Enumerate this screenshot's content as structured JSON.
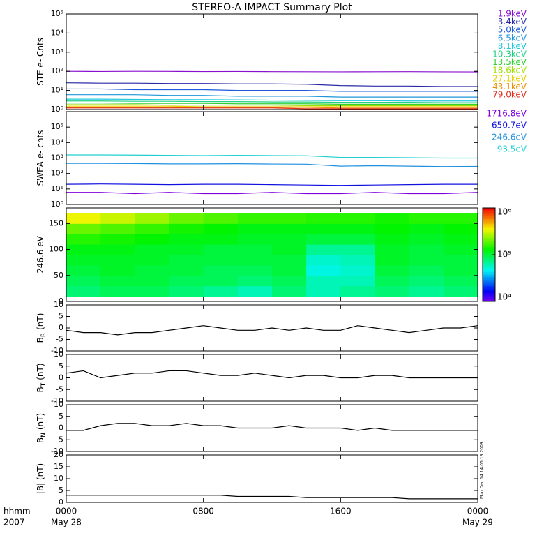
{
  "title": "STEREO-A IMPACT Summary Plot",
  "footnote": "Mon Dec 14 14:05:18 2009",
  "chart_data": [
    {
      "type": "line",
      "ylabel": "STE e- Cnts",
      "log": true,
      "x": [
        0,
        2,
        4,
        6,
        8,
        10,
        12,
        14,
        16,
        18,
        20,
        22,
        24
      ],
      "xlim": [
        0,
        24
      ],
      "ylim": [
        1,
        100000
      ],
      "yticks": [
        {
          "value": 1,
          "label": "10⁰"
        },
        {
          "value": 10,
          "label": "10¹"
        },
        {
          "value": 100,
          "label": "10²"
        },
        {
          "value": 1000,
          "label": "10³"
        },
        {
          "value": 10000,
          "label": "10⁴"
        },
        {
          "value": 100000,
          "label": "10⁵"
        }
      ],
      "series": [
        {
          "name": "1.9keV",
          "color": "#8a10d0",
          "values": [
            100,
            98,
            100,
            99,
            97,
            98,
            96,
            95,
            94,
            95,
            96,
            94,
            93
          ]
        },
        {
          "name": "3.4keV",
          "color": "#2a2aa8",
          "values": [
            25,
            24,
            24,
            23,
            23,
            22,
            22,
            21,
            18,
            17,
            17,
            16,
            16
          ]
        },
        {
          "name": "5.0keV",
          "color": "#1e5adc",
          "values": [
            12,
            12,
            11,
            11,
            11,
            10,
            10,
            10,
            9,
            9,
            9,
            9,
            9
          ]
        },
        {
          "name": "6.5keV",
          "color": "#1e96dc",
          "values": [
            6,
            6,
            6,
            5.5,
            5.5,
            5,
            5,
            5,
            4.5,
            4.5,
            4.5,
            4.5,
            4.5
          ]
        },
        {
          "name": "8.1keV",
          "color": "#20c8e0",
          "values": [
            3.5,
            3.5,
            3.4,
            3.3,
            3.3,
            3.2,
            3.1,
            3,
            2.9,
            2.9,
            2.8,
            2.8,
            2.8
          ]
        },
        {
          "name": "10.3keV",
          "color": "#20d080",
          "values": [
            2.8,
            2.8,
            2.7,
            2.7,
            2.6,
            2.6,
            2.5,
            2.5,
            2.4,
            2.4,
            2.4,
            2.3,
            2.3
          ]
        },
        {
          "name": "13.5keV",
          "color": "#30d030",
          "values": [
            2.2,
            2.2,
            2.1,
            2.1,
            2.1,
            2,
            2,
            2,
            1.9,
            1.9,
            1.9,
            1.9,
            1.9
          ]
        },
        {
          "name": "18.6keV",
          "color": "#a0e000",
          "values": [
            1.8,
            1.8,
            1.8,
            1.7,
            1.7,
            1.7,
            1.7,
            1.6,
            1.6,
            1.6,
            1.6,
            1.6,
            1.6
          ]
        },
        {
          "name": "27.1keV",
          "color": "#e8d000",
          "values": [
            1.5,
            1.5,
            1.5,
            1.5,
            1.4,
            1.4,
            1.4,
            1.4,
            1.4,
            1.4,
            1.4,
            1.4,
            1.4
          ]
        },
        {
          "name": "43.1keV",
          "color": "#f09000",
          "values": [
            1.3,
            1.3,
            1.3,
            1.3,
            1.3,
            1.3,
            1.3,
            1.3,
            1.2,
            1.2,
            1.2,
            1.2,
            1.2
          ]
        },
        {
          "name": "79.0keV",
          "color": "#e03020",
          "values": [
            1.2,
            1.2,
            1.2,
            1.2,
            1.2,
            1.2,
            1.2,
            1.1,
            1.1,
            1.1,
            1.1,
            1.1,
            1.1
          ]
        }
      ]
    },
    {
      "type": "line",
      "ylabel": "SWEA e- cnts",
      "log": true,
      "x": [
        0,
        2,
        4,
        6,
        8,
        10,
        12,
        14,
        16,
        18,
        20,
        22,
        24
      ],
      "xlim": [
        0,
        24
      ],
      "ylim": [
        1,
        1000000
      ],
      "yticks": [
        {
          "value": 1,
          "label": "10⁰"
        },
        {
          "value": 10,
          "label": "10¹"
        },
        {
          "value": 100,
          "label": "10²"
        },
        {
          "value": 1000,
          "label": "10³"
        },
        {
          "value": 10000,
          "label": "10⁴"
        },
        {
          "value": 100000,
          "label": "10⁵"
        }
      ],
      "series": [
        {
          "name": "1716.8eV",
          "color": "#8000e0",
          "values": [
            6,
            6,
            5,
            6,
            5,
            5,
            6,
            5,
            5,
            6,
            5,
            5,
            6
          ]
        },
        {
          "name": "650.7eV",
          "color": "#1010e0",
          "values": [
            20,
            21,
            20,
            19,
            20,
            20,
            19,
            18,
            17,
            18,
            19,
            20,
            20
          ]
        },
        {
          "name": "246.6eV",
          "color": "#1e90e0",
          "values": [
            450,
            450,
            440,
            420,
            420,
            430,
            410,
            400,
            300,
            320,
            300,
            280,
            290
          ]
        },
        {
          "name": "93.5eV",
          "color": "#20d0d0",
          "values": [
            1600,
            1600,
            1550,
            1500,
            1450,
            1500,
            1450,
            1400,
            1100,
            1100,
            1050,
            1000,
            1000
          ]
        }
      ]
    },
    {
      "type": "heatmap",
      "ylabel": "246.6 eV",
      "x_edges": [
        0,
        2,
        4,
        6,
        8,
        10,
        12,
        14,
        16,
        18,
        20,
        22,
        24
      ],
      "xlim": [
        0,
        24
      ],
      "y_edges": [
        10,
        30,
        50,
        70,
        90,
        110,
        130,
        150,
        170
      ],
      "ylim": [
        0,
        180
      ],
      "yticks": [
        0,
        50,
        100,
        150
      ],
      "zlim": [
        10000,
        1000000
      ],
      "zticks": [
        {
          "value": 10000,
          "label": "10⁴"
        },
        {
          "value": 100000,
          "label": "10⁵"
        },
        {
          "value": 1000000,
          "label": "10⁶"
        }
      ],
      "z": [
        [
          80000,
          90000,
          90000,
          80000,
          70000,
          60000,
          80000,
          60000,
          70000,
          80000,
          70000,
          80000
        ],
        [
          90000,
          100000,
          100000,
          90000,
          90000,
          80000,
          90000,
          60000,
          60000,
          90000,
          80000,
          90000
        ],
        [
          100000,
          110000,
          100000,
          100000,
          90000,
          90000,
          100000,
          50000,
          55000,
          100000,
          90000,
          100000
        ],
        [
          110000,
          110000,
          110000,
          100000,
          100000,
          100000,
          100000,
          55000,
          60000,
          110000,
          100000,
          100000
        ],
        [
          120000,
          120000,
          110000,
          110000,
          100000,
          100000,
          110000,
          70000,
          70000,
          110000,
          100000,
          110000
        ],
        [
          150000,
          140000,
          130000,
          120000,
          120000,
          110000,
          110000,
          100000,
          100000,
          120000,
          110000,
          120000
        ],
        [
          200000,
          180000,
          160000,
          140000,
          130000,
          120000,
          120000,
          120000,
          120000,
          130000,
          120000,
          130000
        ],
        [
          350000,
          300000,
          250000,
          200000,
          180000,
          160000,
          160000,
          150000,
          150000,
          140000,
          150000,
          150000
        ]
      ]
    },
    {
      "type": "line",
      "ylabel": "B",
      "ylabel_sub": "R",
      "ylabel_unit": "(nT)",
      "x": [
        0,
        1,
        2,
        3,
        4,
        5,
        6,
        7,
        8,
        9,
        10,
        11,
        12,
        13,
        14,
        15,
        16,
        17,
        18,
        19,
        20,
        21,
        22,
        23,
        24
      ],
      "xlim": [
        0,
        24
      ],
      "ylim": [
        -10,
        10
      ],
      "yticks": [
        -10,
        -5,
        0,
        5,
        10
      ],
      "series": [
        {
          "color": "#000000",
          "values": [
            -1,
            -2,
            -2,
            -3,
            -2,
            -2,
            -1,
            0,
            1,
            0,
            -1,
            -1,
            0,
            -1,
            0,
            -1,
            -1,
            1,
            0,
            -1,
            -2,
            -1,
            0,
            0,
            1
          ]
        }
      ]
    },
    {
      "type": "line",
      "ylabel": "B",
      "ylabel_sub": "T",
      "ylabel_unit": "(nT)",
      "x": [
        0,
        1,
        2,
        3,
        4,
        5,
        6,
        7,
        8,
        9,
        10,
        11,
        12,
        13,
        14,
        15,
        16,
        17,
        18,
        19,
        20,
        21,
        22,
        23,
        24
      ],
      "xlim": [
        0,
        24
      ],
      "ylim": [
        -10,
        10
      ],
      "yticks": [
        -10,
        -5,
        0,
        5,
        10
      ],
      "series": [
        {
          "color": "#000000",
          "values": [
            2,
            3,
            0,
            1,
            2,
            2,
            3,
            3,
            2,
            1,
            1,
            2,
            1,
            0,
            1,
            1,
            0,
            0,
            1,
            1,
            0,
            0,
            0,
            0,
            0
          ]
        }
      ]
    },
    {
      "type": "line",
      "ylabel": "B",
      "ylabel_sub": "N",
      "ylabel_unit": "(nT)",
      "x": [
        0,
        1,
        2,
        3,
        4,
        5,
        6,
        7,
        8,
        9,
        10,
        11,
        12,
        13,
        14,
        15,
        16,
        17,
        18,
        19,
        20,
        21,
        22,
        23,
        24
      ],
      "xlim": [
        0,
        24
      ],
      "ylim": [
        -10,
        10
      ],
      "yticks": [
        -10,
        -5,
        0,
        5,
        10
      ],
      "series": [
        {
          "color": "#000000",
          "values": [
            -1,
            -1,
            1,
            2,
            2,
            1,
            1,
            2,
            1,
            1,
            0,
            0,
            0,
            1,
            0,
            0,
            0,
            -1,
            0,
            -1,
            -1,
            -1,
            -1,
            -1,
            -1
          ]
        }
      ]
    },
    {
      "type": "line",
      "ylabel": "|B| (nT)",
      "x": [
        0,
        1,
        2,
        3,
        4,
        5,
        6,
        7,
        8,
        9,
        10,
        11,
        12,
        13,
        14,
        15,
        16,
        17,
        18,
        19,
        20,
        21,
        22,
        23,
        24
      ],
      "xlim": [
        0,
        24
      ],
      "ylim": [
        0,
        20
      ],
      "yticks": [
        0,
        5,
        10,
        15,
        20
      ],
      "xlabel": "hhmm",
      "xlabel2": "2007",
      "xticks": [
        {
          "value": 0,
          "label": "0000"
        },
        {
          "value": 8,
          "label": "0800"
        },
        {
          "value": 16,
          "label": "1600"
        },
        {
          "value": 24,
          "label": "0000"
        }
      ],
      "date_labels": [
        {
          "value": 0,
          "label": "May 28"
        },
        {
          "value": 24,
          "label": "May 29"
        }
      ],
      "series": [
        {
          "color": "#000000",
          "values": [
            3,
            3,
            3,
            3,
            3,
            3,
            3,
            3,
            3,
            3,
            2.5,
            2.5,
            2.5,
            2.5,
            2,
            2,
            2,
            2,
            2,
            2,
            1.5,
            1.5,
            1.5,
            1.5,
            1.5
          ]
        }
      ]
    }
  ]
}
